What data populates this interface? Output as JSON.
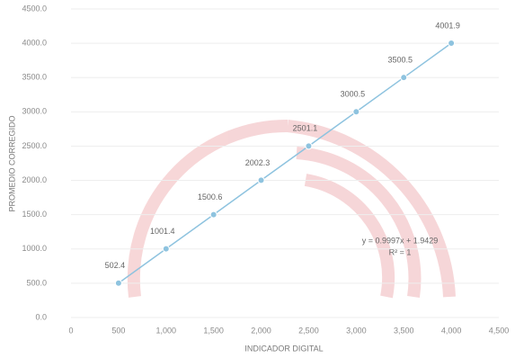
{
  "chart_data": {
    "type": "line",
    "x_label": "INDICADOR DIGITAL",
    "y_label": "PROMEDIO CORREGIDO",
    "x": [
      500,
      1000,
      1500,
      2000,
      2500,
      3000,
      3500,
      4000
    ],
    "series": [
      {
        "color": "#8ec3df",
        "values": [
          502.4,
          1001.4,
          1500.6,
          2002.3,
          2501.1,
          3000.5,
          3500.5,
          4001.9
        ]
      }
    ],
    "xlim": [
      0,
      4500
    ],
    "xticks": [
      0,
      500,
      {
        "value": 1000,
        "label": "1,000"
      },
      {
        "value": 1500,
        "label": "1,500"
      },
      {
        "value": 2000,
        "label": "2,000"
      },
      {
        "value": 2500,
        "label": "2,500"
      },
      {
        "value": 3000,
        "label": "3,000"
      },
      {
        "value": 3500,
        "label": "3,500"
      },
      {
        "value": 4000,
        "label": "4,000"
      },
      {
        "value": 4500,
        "label": "4,500"
      }
    ],
    "ylim": [
      0,
      4500
    ],
    "yticks": [
      {
        "value": 0,
        "label": "0.0"
      },
      {
        "value": 500,
        "label": "500.0"
      },
      {
        "value": 1000,
        "label": "1000.0"
      },
      {
        "value": 1500,
        "label": "1500.0"
      },
      {
        "value": 2000,
        "label": "2000.0"
      },
      {
        "value": 2500,
        "label": "2500.0"
      },
      {
        "value": 3000,
        "label": "3000.0"
      },
      {
        "value": 3500,
        "label": "3500.0"
      },
      {
        "value": 4000,
        "label": "4000.0"
      },
      {
        "value": 4500,
        "label": "4500.0"
      }
    ],
    "grid": true,
    "annotations": [
      "y = 0.9997x + 1.9429",
      "R² = 1"
    ]
  }
}
